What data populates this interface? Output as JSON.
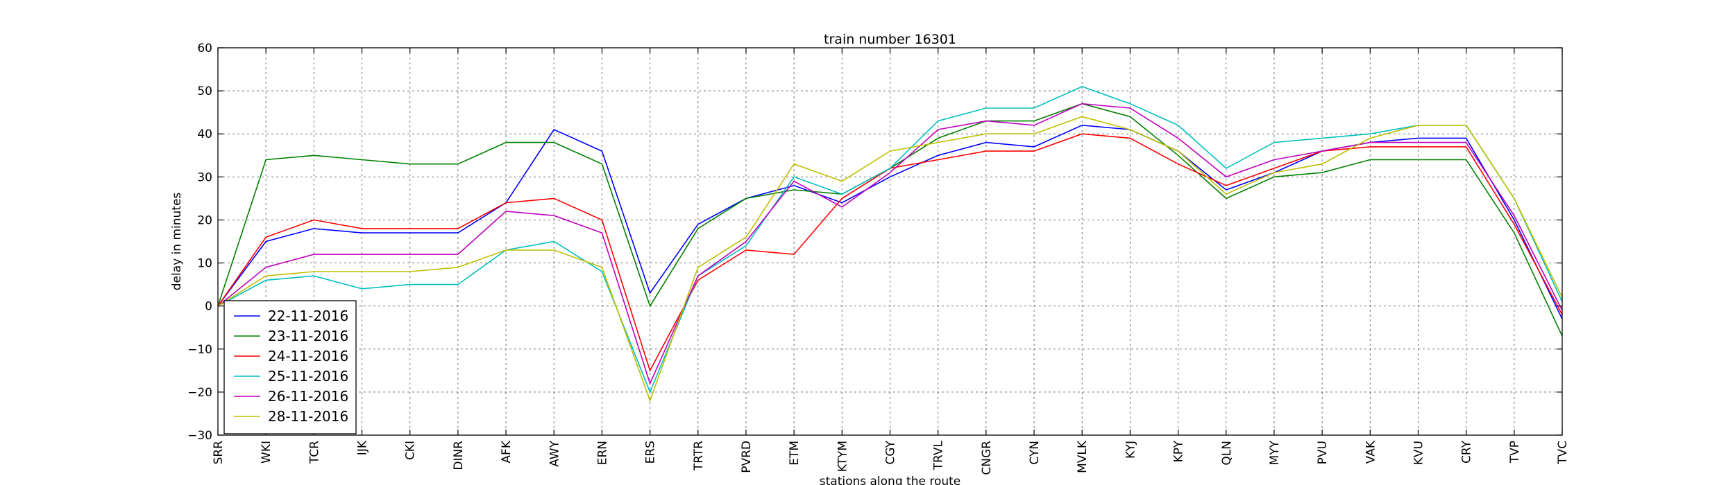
{
  "chart_data": {
    "type": "line",
    "title": "train number 16301",
    "xlabel": "stations along the route",
    "ylabel": "delay in minutes",
    "ylim": [
      -30,
      60
    ],
    "yticks": [
      -30,
      -20,
      -10,
      0,
      10,
      20,
      30,
      40,
      50,
      60
    ],
    "grid": true,
    "legend_position": "bottom-left",
    "categories": [
      "SRR",
      "WKI",
      "TCR",
      "IJK",
      "CKI",
      "DINR",
      "AFK",
      "AWY",
      "ERN",
      "ERS",
      "TRTR",
      "PVRD",
      "ETM",
      "KTYM",
      "CGY",
      "TRVL",
      "CNGR",
      "CYN",
      "MVLK",
      "KYJ",
      "KPY",
      "QLN",
      "MYY",
      "PVU",
      "VAK",
      "KVU",
      "CRY",
      "TVP",
      "TVC"
    ],
    "series": [
      {
        "name": "22-11-2016",
        "color": "#0000ff",
        "values": [
          0,
          15,
          18,
          17,
          17,
          17,
          24,
          41,
          36,
          3,
          19,
          25,
          28,
          24,
          30,
          35,
          38,
          37,
          42,
          41,
          36,
          27,
          31,
          36,
          38,
          39,
          39,
          20,
          -3
        ]
      },
      {
        "name": "23-11-2016",
        "color": "#008000",
        "values": [
          0,
          34,
          35,
          34,
          33,
          33,
          38,
          38,
          33,
          0,
          18,
          25,
          27,
          26,
          32,
          39,
          43,
          43,
          47,
          44,
          35,
          25,
          30,
          31,
          34,
          34,
          34,
          17,
          -7
        ]
      },
      {
        "name": "24-11-2016",
        "color": "#ff0000",
        "values": [
          0,
          16,
          20,
          18,
          18,
          18,
          24,
          25,
          20,
          -15,
          6,
          13,
          12,
          25,
          32,
          34,
          36,
          36,
          40,
          39,
          33,
          28,
          32,
          36,
          37,
          37,
          37,
          19,
          -2
        ]
      },
      {
        "name": "25-11-2016",
        "color": "#00bfbf",
        "values": [
          0,
          6,
          7,
          4,
          5,
          5,
          13,
          15,
          8,
          -20,
          7,
          14,
          30,
          26,
          32,
          43,
          46,
          46,
          51,
          47,
          42,
          32,
          38,
          39,
          40,
          42,
          42,
          25,
          1
        ]
      },
      {
        "name": "26-11-2016",
        "color": "#bf00bf",
        "values": [
          0,
          9,
          12,
          12,
          12,
          12,
          22,
          21,
          17,
          -18,
          7,
          15,
          29,
          23,
          31,
          41,
          43,
          42,
          47,
          46,
          39,
          30,
          34,
          36,
          38,
          38,
          38,
          21,
          -1
        ]
      },
      {
        "name": "28-11-2016",
        "color": "#bfbf00",
        "values": [
          0,
          7,
          8,
          8,
          8,
          9,
          13,
          13,
          9,
          -22,
          9,
          16,
          33,
          29,
          36,
          38,
          40,
          40,
          44,
          41,
          36,
          26,
          31,
          33,
          39,
          42,
          42,
          25,
          2
        ]
      }
    ]
  }
}
